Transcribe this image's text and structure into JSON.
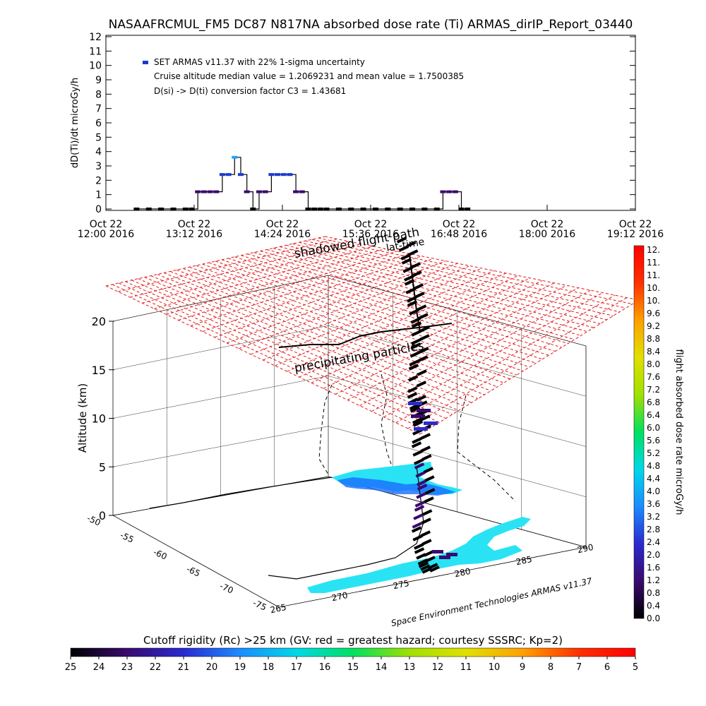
{
  "chart_data": [
    {
      "type": "line",
      "title": "NASAAFRCMUL_FM5 DC87 N817NA absorbed dose rate (Ti) ARMAS_dirIP_Report_03440",
      "ylabel": "dD(Ti)/dt microGy/h",
      "ylim": [
        0,
        12
      ],
      "yticks": [
        "0",
        "1",
        "2",
        "3",
        "4",
        "5",
        "6",
        "7",
        "8",
        "9",
        "10",
        "11",
        "12"
      ],
      "xlim": [
        "2016-10-22 12:00",
        "2016-10-22 19:12"
      ],
      "xticks": [
        {
          "date": "Oct 22",
          "time": "12:00 2016"
        },
        {
          "date": "Oct 22",
          "time": "13:12 2016"
        },
        {
          "date": "Oct 22",
          "time": "14:24 2016"
        },
        {
          "date": "Oct 22",
          "time": "15:36 2016"
        },
        {
          "date": "Oct 22",
          "time": "16:48 2016"
        },
        {
          "date": "Oct 22",
          "time": "18:00 2016"
        },
        {
          "date": "Oct 22",
          "time": "19:12 2016"
        }
      ],
      "legend": [
        "SET ARMAS v11.37 with 22% 1-sigma uncertainty",
        "Cruise altitude median value = 1.2069231 and mean value = 1.7500385",
        "D(si) -> D(ti) conversion factor C3 = 1.43681"
      ],
      "legend_position": "top-left",
      "series": [
        {
          "color": "#3a0a6e",
          "x": [
            "12:25",
            "12:35",
            "12:45",
            "12:55",
            "13:05",
            "13:10",
            "13:15",
            "13:20",
            "13:25",
            "13:30",
            "13:35",
            "13:40",
            "13:45",
            "13:50",
            "13:55",
            "14:00",
            "14:05",
            "14:10",
            "14:15",
            "14:20",
            "14:25",
            "14:30",
            "14:35",
            "14:40",
            "14:45",
            "14:50",
            "14:55",
            "15:00",
            "15:10",
            "15:20",
            "15:30",
            "15:40",
            "15:50",
            "16:00",
            "16:10",
            "16:20",
            "16:30",
            "16:35",
            "16:40",
            "16:45",
            "16:50",
            "16:55"
          ],
          "y": [
            0,
            0,
            0,
            0,
            0,
            0,
            1.2,
            1.2,
            1.2,
            1.2,
            2.4,
            2.4,
            3.6,
            2.4,
            1.2,
            0,
            1.2,
            1.2,
            2.4,
            2.4,
            2.4,
            2.4,
            1.2,
            1.2,
            0,
            0,
            0,
            0,
            0,
            0,
            0,
            0,
            0,
            0,
            0,
            0,
            0,
            1.2,
            1.2,
            1.2,
            0,
            0
          ]
        }
      ]
    },
    {
      "type": "scatter",
      "subtype": "3d-flight-path",
      "zlabel": "Altitude (km)",
      "zlim": [
        0,
        20
      ],
      "zticks": [
        "0",
        "5",
        "10",
        "15",
        "20"
      ],
      "lat_ticks": [
        "-75",
        "-70",
        "-65",
        "-60",
        "-55",
        "-50"
      ],
      "lon_ticks": [
        "265",
        "270",
        "275",
        "280",
        "285",
        "290"
      ],
      "annotations": [
        "shadowed flight path",
        "lat-time",
        "precipitating particles",
        "Space Environment Technologies ARMAS v11.37"
      ],
      "colorbar": {
        "label": "flight absorbed dose rate microGy/h",
        "range": [
          0,
          12
        ],
        "ticks": [
          "12.",
          "11.",
          "11.",
          "10.",
          "10.",
          "9.6",
          "9.2",
          "8.8",
          "8.4",
          "8.0",
          "7.6",
          "7.2",
          "6.8",
          "6.4",
          "6.0",
          "5.6",
          "5.2",
          "4.8",
          "4.4",
          "4.0",
          "3.6",
          "3.2",
          "2.8",
          "2.4",
          "2.0",
          "1.6",
          "1.2",
          "0.8",
          "0.4",
          "0.0"
        ],
        "colors": [
          "#000000",
          "#3a0a6e",
          "#2a2ad0",
          "#1a8cff",
          "#00d8e8",
          "#00e060",
          "#a0e000",
          "#e0e000",
          "#ffa000",
          "#ff3000",
          "#ff0000"
        ]
      },
      "flight_path": [
        {
          "lon": 268.0,
          "lat": -72.0,
          "alt": 0.0
        },
        {
          "lon": 274.0,
          "lat": -69.0,
          "alt": 0.5
        },
        {
          "lon": 279.0,
          "lat": -67.0,
          "alt": 1.0
        },
        {
          "lon": 278.0,
          "lat": -64.0,
          "alt": 8.0
        },
        {
          "lon": 277.5,
          "lat": -61.0,
          "alt": 10.5
        },
        {
          "lon": 277.0,
          "lat": -58.0,
          "alt": 11.0
        },
        {
          "lon": 276.5,
          "lat": -56.0,
          "alt": 11.0
        },
        {
          "lon": 276.0,
          "lat": -54.5,
          "alt": 8.0
        },
        {
          "lon": 275.5,
          "lat": -53.5,
          "alt": 4.0
        }
      ]
    }
  ],
  "bottom_colorbar": {
    "title": "Cutoff rigidity (Rc) >25 km (GV: red = greatest hazard; courtesy SSSRC; Kp=2)",
    "ticks": [
      "25",
      "24",
      "23",
      "22",
      "21",
      "20",
      "19",
      "18",
      "17",
      "16",
      "15",
      "14",
      "13",
      "12",
      "11",
      "10",
      "9",
      "8",
      "7",
      "6",
      "5"
    ],
    "colors": [
      "#000000",
      "#3a0a6e",
      "#2a2ad0",
      "#1a8cff",
      "#00d8e8",
      "#00e060",
      "#a0e000",
      "#e0e000",
      "#ffa000",
      "#ff3000",
      "#ff0000"
    ]
  }
}
